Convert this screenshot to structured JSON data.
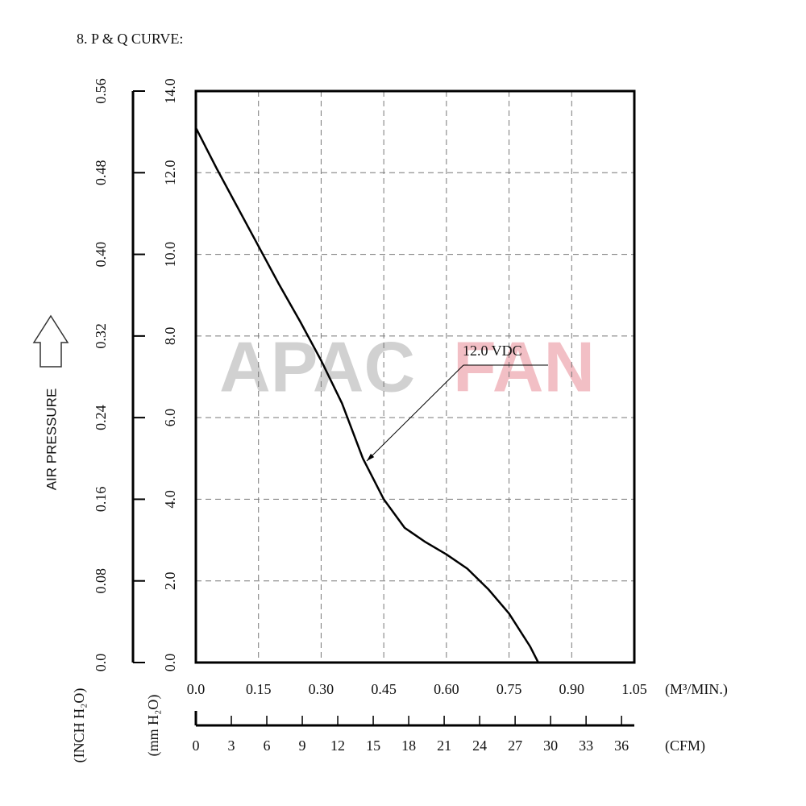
{
  "chart_data": {
    "type": "line",
    "title": "8. P & Q CURVE:",
    "y_axis_title": "AIR PRESSURE",
    "y_label": "(mm H₂O)",
    "y2_label": "(INCH H₂O)",
    "x_label": "(M³/MIN.)",
    "watermark": [
      "APAC",
      "FAN"
    ],
    "x": [
      0,
      0.05,
      0.1,
      0.15,
      0.2,
      0.25,
      0.3,
      0.35,
      0.4,
      0.45,
      0.5,
      0.55,
      0.6,
      0.65,
      0.7,
      0.75,
      0.8,
      0.82
    ],
    "series": [
      {
        "name": "12.0 VDC",
        "color": "#000000",
        "values": [
          13.1,
          12.1,
          11.15,
          10.2,
          9.25,
          8.35,
          7.4,
          6.35,
          5.0,
          4.0,
          3.3,
          2.95,
          2.65,
          2.3,
          1.8,
          1.2,
          0.4,
          0
        ]
      }
    ],
    "xlim": [
      0,
      1.05
    ],
    "xticks": [
      {
        "value": 0,
        "label": "0.0"
      },
      0.15,
      {
        "value": 0.3,
        "label": "0.30"
      },
      0.45,
      {
        "value": 0.6,
        "label": "0.60"
      },
      0.75,
      {
        "value": 0.9,
        "label": "0.90"
      },
      1.05
    ],
    "ylim": [
      0,
      14
    ],
    "yticks": [
      {
        "value": 0,
        "label": "0.0"
      },
      {
        "value": 2,
        "label": "2.0"
      },
      {
        "value": 4,
        "label": "4.0"
      },
      {
        "value": 6,
        "label": "6.0"
      },
      {
        "value": 8,
        "label": "8.0"
      },
      {
        "value": 10,
        "label": "10.0"
      },
      {
        "value": 12,
        "label": "12.0"
      },
      {
        "value": 14,
        "label": "14.0"
      }
    ],
    "y2lim": [
      0,
      0.56
    ],
    "y2ticks": [
      {
        "value": 0,
        "label": "0.0"
      },
      0.08,
      0.16,
      0.24,
      {
        "value": 0.32,
        "label": "0.32"
      },
      {
        "value": 0.4,
        "label": "0.40"
      },
      0.48,
      0.56
    ],
    "cfm_axis": {
      "label": "(CFM)",
      "xlim": [
        0,
        37.08
      ],
      "xticks": [
        0,
        3,
        6,
        9,
        12,
        15,
        18,
        21,
        24,
        27,
        30,
        33,
        36
      ]
    },
    "grid": true
  }
}
